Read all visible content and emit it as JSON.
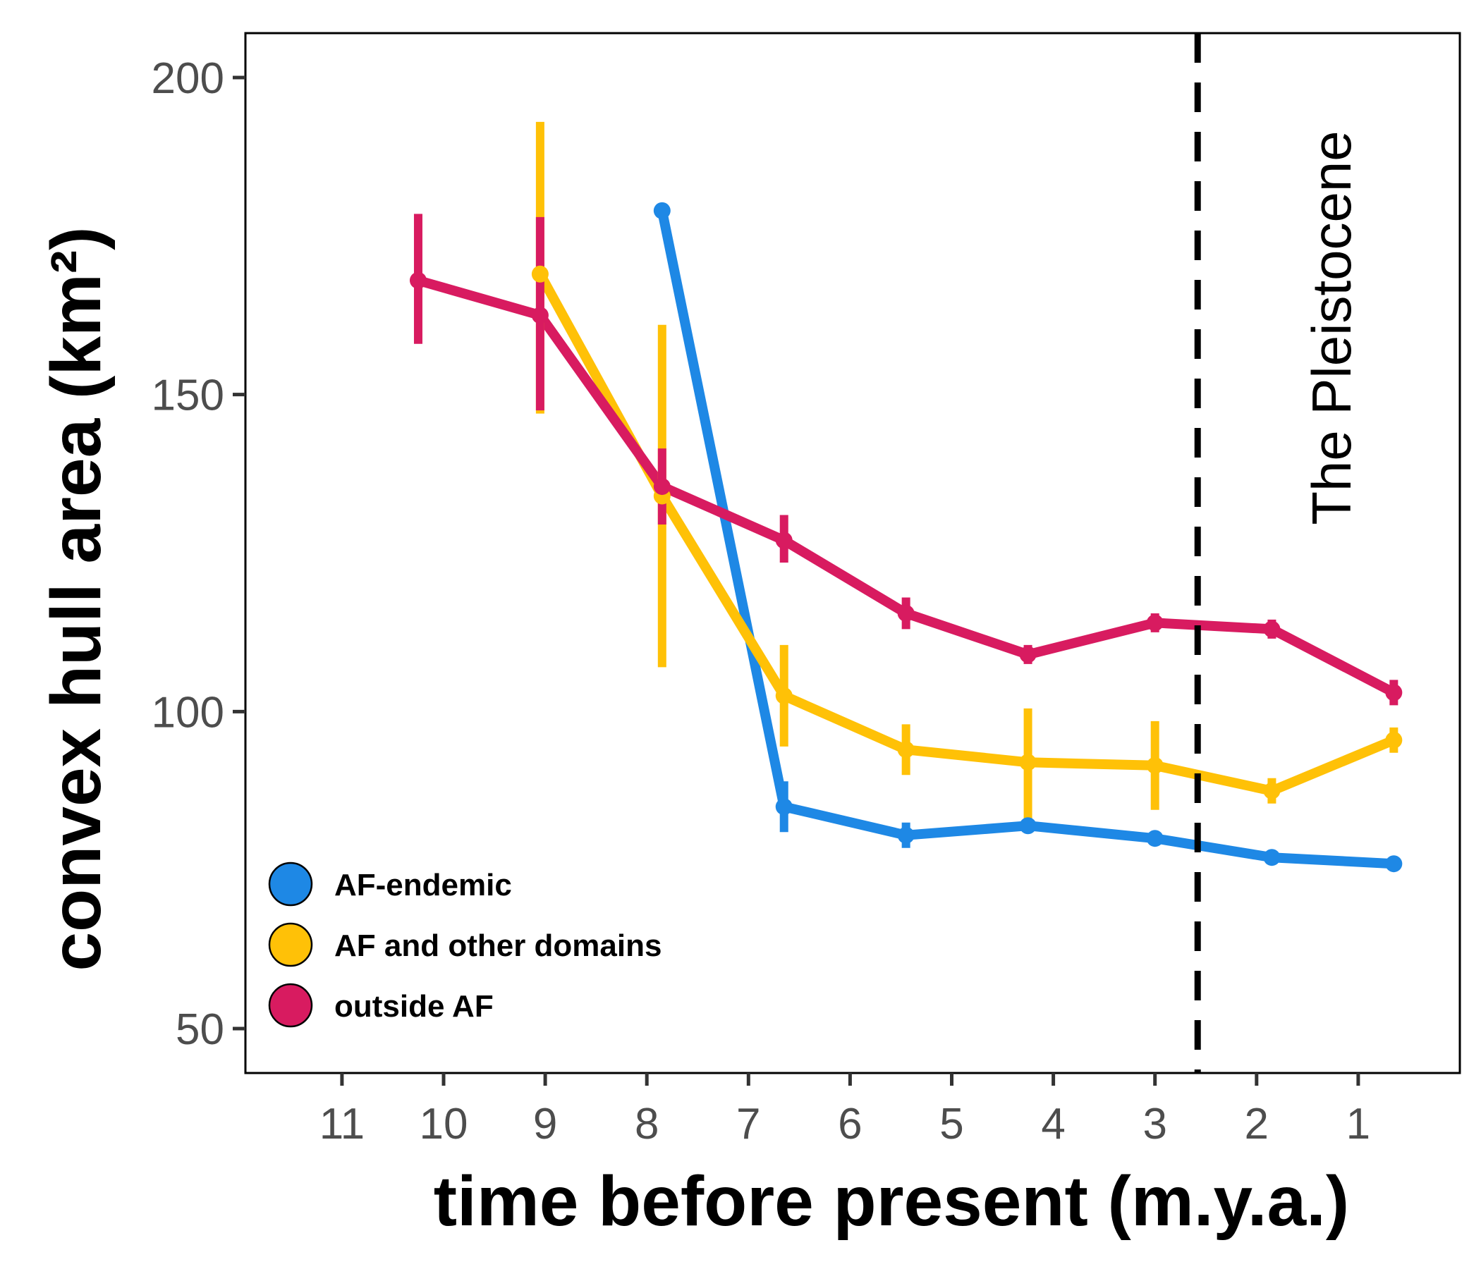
{
  "chart_data": {
    "type": "line",
    "xlabel": "time before present (m.y.a.)",
    "ylabel": "convex hull area (km²)",
    "x_reversed": true,
    "xlim": [
      11.95,
      0.0
    ],
    "ylim": [
      43,
      207
    ],
    "xticks": [
      11,
      10,
      9,
      8,
      7,
      6,
      5,
      4,
      3,
      2,
      1
    ],
    "yticks": [
      50,
      100,
      150,
      200
    ],
    "grid": false,
    "legend_position": "bottom-left",
    "annotation": {
      "text": "The Pleistocene",
      "x": 2.58
    },
    "series": [
      {
        "name": "AF-endemic",
        "color": "#1E88E5",
        "points": [
          {
            "x": 7.85,
            "y": 179,
            "lo": 179,
            "hi": 179
          },
          {
            "x": 6.65,
            "y": 85,
            "lo": 81,
            "hi": 89
          },
          {
            "x": 5.45,
            "y": 80.5,
            "lo": 78.5,
            "hi": 82.5
          },
          {
            "x": 4.25,
            "y": 82,
            "lo": 81,
            "hi": 83
          },
          {
            "x": 3.0,
            "y": 80,
            "lo": 79.5,
            "hi": 80.5
          },
          {
            "x": 1.85,
            "y": 77,
            "lo": 76.5,
            "hi": 77.5
          },
          {
            "x": 0.65,
            "y": 76,
            "lo": 75.5,
            "hi": 76.5
          }
        ]
      },
      {
        "name": "AF and other domains",
        "color": "#FFC107",
        "points": [
          {
            "x": 9.05,
            "y": 169,
            "lo": 147,
            "hi": 193
          },
          {
            "x": 7.85,
            "y": 134,
            "lo": 107,
            "hi": 161
          },
          {
            "x": 6.65,
            "y": 102.5,
            "lo": 94.5,
            "hi": 110.5
          },
          {
            "x": 5.45,
            "y": 94,
            "lo": 90,
            "hi": 98
          },
          {
            "x": 4.25,
            "y": 92,
            "lo": 83,
            "hi": 100.5
          },
          {
            "x": 3.0,
            "y": 91.5,
            "lo": 84.5,
            "hi": 98.5
          },
          {
            "x": 1.85,
            "y": 87.5,
            "lo": 85.5,
            "hi": 89.5
          },
          {
            "x": 0.65,
            "y": 95.5,
            "lo": 93.5,
            "hi": 97.5
          }
        ]
      },
      {
        "name": "outside AF",
        "color": "#D81B60",
        "points": [
          {
            "x": 10.25,
            "y": 168,
            "lo": 158,
            "hi": 178.5
          },
          {
            "x": 9.05,
            "y": 162.5,
            "lo": 147.5,
            "hi": 178
          },
          {
            "x": 7.85,
            "y": 135.5,
            "lo": 129.5,
            "hi": 141.5
          },
          {
            "x": 6.65,
            "y": 127,
            "lo": 123.5,
            "hi": 131
          },
          {
            "x": 5.45,
            "y": 115.5,
            "lo": 113,
            "hi": 118
          },
          {
            "x": 4.25,
            "y": 109,
            "lo": 107.5,
            "hi": 110.5
          },
          {
            "x": 3.0,
            "y": 114,
            "lo": 112.5,
            "hi": 115.5
          },
          {
            "x": 1.85,
            "y": 113,
            "lo": 111.5,
            "hi": 114.5
          },
          {
            "x": 0.65,
            "y": 103,
            "lo": 101,
            "hi": 105
          }
        ]
      }
    ]
  }
}
